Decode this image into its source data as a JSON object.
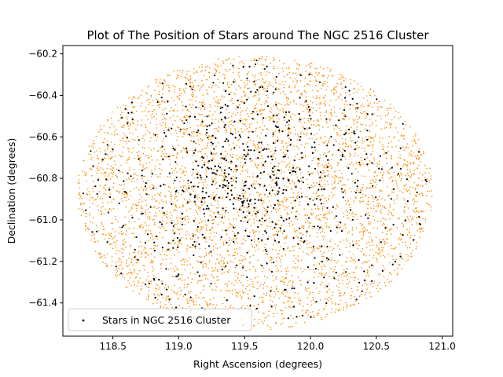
{
  "chart_data": {
    "type": "scatter",
    "title": "Plot of The Position of Stars around The NGC 2516 Cluster",
    "xlabel": "Right Ascension (degrees)",
    "ylabel": "Declination (degrees)",
    "xlim": [
      118.12,
      121.08
    ],
    "ylim": [
      -61.56,
      -60.16
    ],
    "xticks": [
      118.5,
      119.0,
      119.5,
      120.0,
      120.5,
      121.0
    ],
    "xtick_labels": [
      "118.5",
      "119.0",
      "119.5",
      "120.0",
      "120.5",
      "121.0"
    ],
    "yticks": [
      -60.2,
      -60.4,
      -60.6,
      -60.8,
      -61.0,
      -61.2,
      -61.4
    ],
    "ytick_labels": [
      "−60.2",
      "−60.4",
      "−60.6",
      "−60.8",
      "−61.0",
      "−61.2",
      "−61.4"
    ],
    "grid": false,
    "legend_position": "lower-left",
    "series": [
      {
        "color": "#ff8c00",
        "marker": "dot",
        "distribution": "uniform within circular field",
        "field_center": [
          119.58,
          -60.87
        ],
        "field_radius_ra": 1.35,
        "field_radius_dec": 0.66,
        "approx_count": 4500
      },
      {
        "name": "Stars in NGC 2516 Cluster",
        "color": "#000000",
        "marker": "dot",
        "distribution": "concentrated toward cluster center",
        "cluster_center": [
          119.55,
          -60.8
        ],
        "approx_count": 700
      }
    ]
  }
}
